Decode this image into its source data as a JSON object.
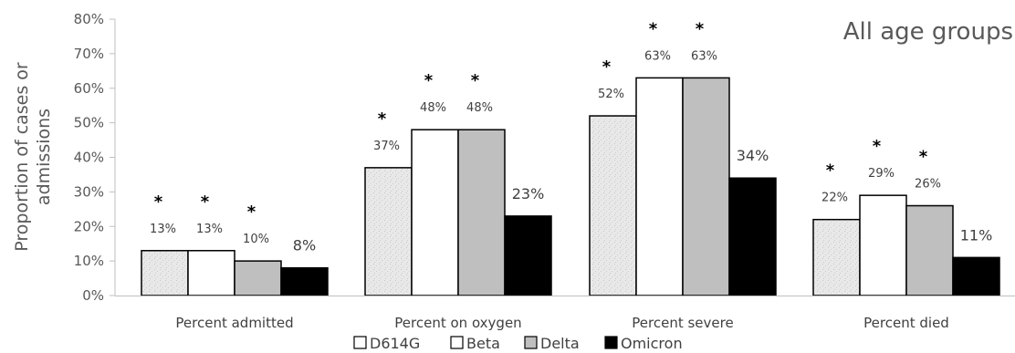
{
  "chart_data": {
    "type": "bar",
    "title": "All age groups",
    "ylabel": "Proportion of cases or admissions",
    "ylabel_lines": [
      "Proportion of cases or",
      "admissions"
    ],
    "xlabel": "",
    "ylim": [
      0,
      80
    ],
    "yticks": [
      "0%",
      "10%",
      "20%",
      "30%",
      "40%",
      "50%",
      "60%",
      "70%",
      "80%"
    ],
    "categories": [
      "Percent admitted",
      "Percent on oxygen",
      "Percent severe",
      "Percent died"
    ],
    "legend_position": "bottom",
    "grid": false,
    "significance_marker": "*",
    "series": [
      {
        "name": "D614G",
        "values": [
          13,
          37,
          52,
          22
        ],
        "labels": [
          "13%",
          "37%",
          "52%",
          "22%"
        ],
        "significant": [
          true,
          true,
          true,
          true
        ],
        "fill": "#e6e6e6"
      },
      {
        "name": "Beta",
        "values": [
          13,
          48,
          63,
          29
        ],
        "labels": [
          "13%",
          "48%",
          "63%",
          "29%"
        ],
        "significant": [
          true,
          true,
          true,
          true
        ],
        "fill": "#ffffff"
      },
      {
        "name": "Delta",
        "values": [
          10,
          48,
          63,
          26
        ],
        "labels": [
          "10%",
          "48%",
          "63%",
          "26%"
        ],
        "significant": [
          true,
          true,
          true,
          true
        ],
        "fill": "#bfbfbf"
      },
      {
        "name": "Omicron",
        "values": [
          8,
          23,
          34,
          11
        ],
        "labels": [
          "8%",
          "23%",
          "34%",
          "11%"
        ],
        "significant": [
          false,
          false,
          false,
          false
        ],
        "fill": "#000000"
      }
    ]
  }
}
